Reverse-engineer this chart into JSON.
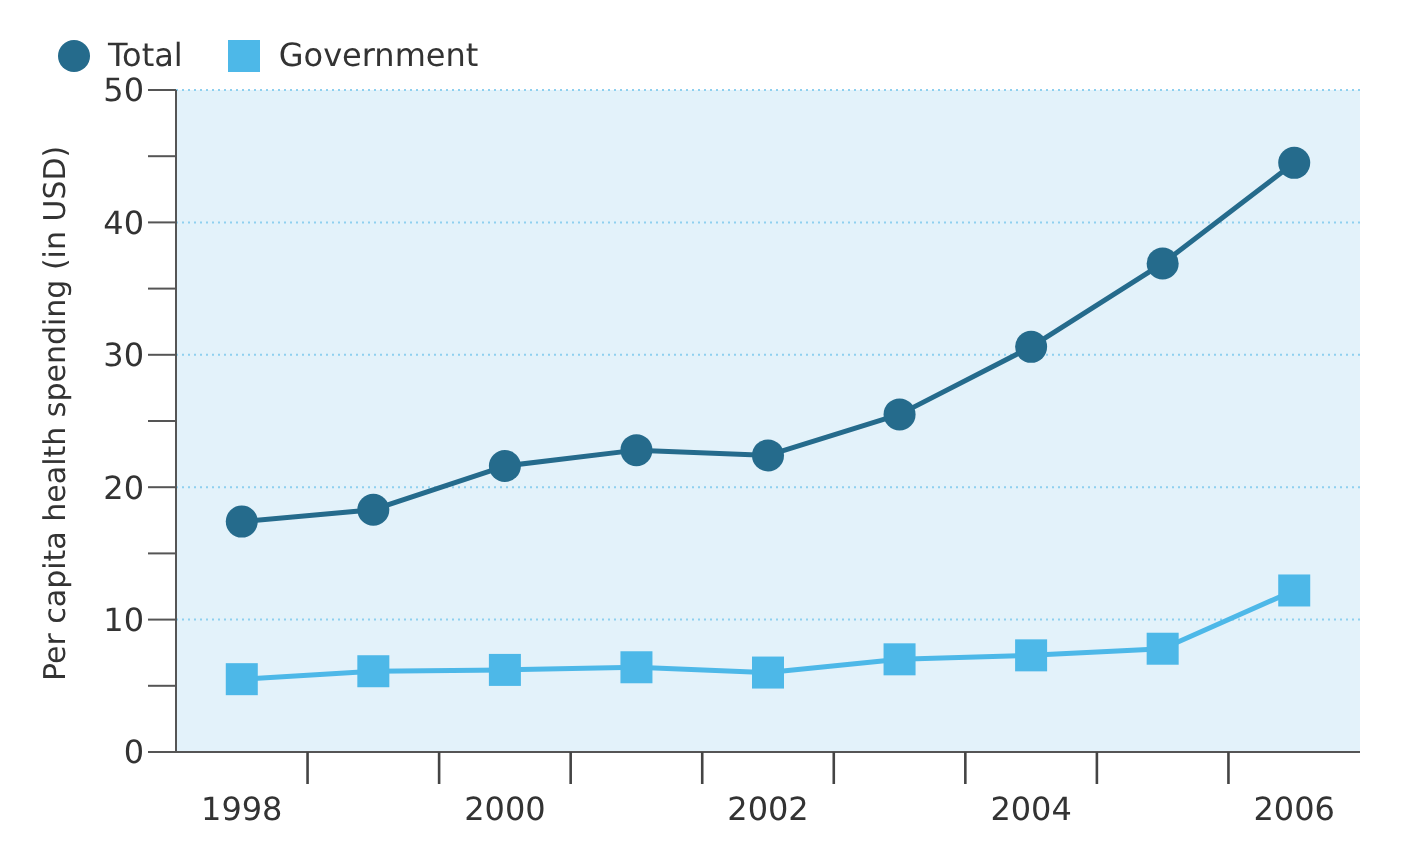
{
  "chart_data": {
    "type": "line",
    "ylabel": "Per capita health spending (in USD)",
    "categories": [
      "1998",
      null,
      "2000",
      null,
      "2002",
      null,
      "2004",
      null,
      "2006"
    ],
    "series": [
      {
        "name": "Total",
        "color": "#256b8c",
        "marker": "circle",
        "values": [
          17.4,
          18.3,
          21.6,
          22.8,
          22.4,
          25.5,
          30.6,
          36.9,
          44.5
        ]
      },
      {
        "name": "Government",
        "color": "#4db8e8",
        "marker": "square",
        "values": [
          5.5,
          6.1,
          6.2,
          6.4,
          6.0,
          7.0,
          7.3,
          7.8,
          12.2
        ]
      }
    ],
    "ylim": [
      0,
      50
    ],
    "yticks": [
      0,
      {
        "value": 5,
        "label": null
      },
      10,
      {
        "value": 15,
        "label": null
      },
      20,
      {
        "value": 25,
        "label": null
      },
      30,
      {
        "value": 35,
        "label": null
      },
      40,
      {
        "value": 45,
        "label": null
      },
      50
    ],
    "grid": "y",
    "legend": "top left"
  }
}
